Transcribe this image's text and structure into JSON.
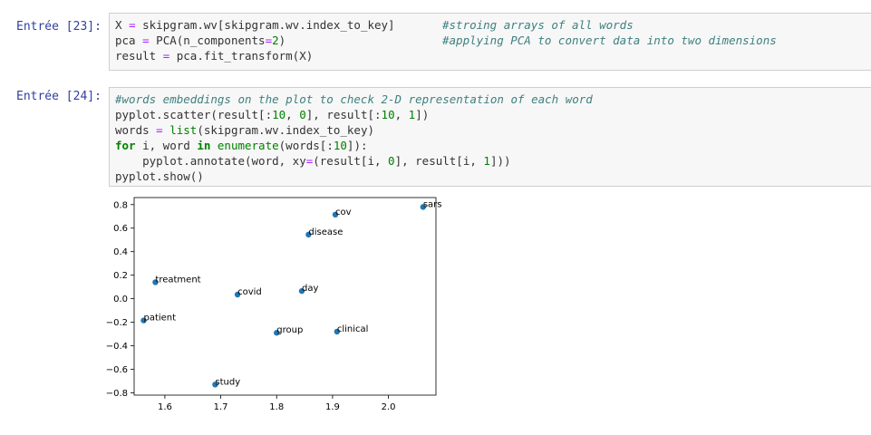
{
  "cells": [
    {
      "prompt": "Entrée [23]:",
      "lines": [
        {
          "code": "X = skipgram.wv[skipgram.wv.index_to_key]",
          "comment": "#stroing arrays of all words"
        },
        {
          "code": "pca = PCA(n_components=2)",
          "comment": "#applying PCA to convert data into two dimensions"
        },
        {
          "code": "result = pca.fit_transform(X)",
          "comment": ""
        }
      ]
    },
    {
      "prompt": "Entrée [24]:",
      "lines": [
        {
          "code": "#words embeddings on the plot to check 2-D representation of each word",
          "comment": ""
        },
        {
          "code": "pyplot.scatter(result[:10, 0], result[:10, 1])",
          "comment": ""
        },
        {
          "code": "words = list(skipgram.wv.index_to_key)",
          "comment": ""
        },
        {
          "code": "for i, word in enumerate(words[:10]):",
          "comment": ""
        },
        {
          "code": "    pyplot.annotate(word, xy=(result[i, 0], result[i, 1]))",
          "comment": ""
        },
        {
          "code": "pyplot.show()",
          "comment": ""
        }
      ]
    }
  ],
  "colors": {
    "point": "#1f77b4",
    "prompt": "#303f9f",
    "comment": "#408080",
    "keyword": "#008000"
  },
  "chart_data": {
    "type": "scatter",
    "title": "",
    "xlabel": "",
    "ylabel": "",
    "xlim": [
      1.545,
      2.085
    ],
    "ylim": [
      -0.82,
      0.86
    ],
    "xticks": [
      1.6,
      1.7,
      1.8,
      1.9,
      2.0
    ],
    "xtick_labels": [
      "1.6",
      "1.7",
      "1.8",
      "1.9",
      "2.0"
    ],
    "yticks": [
      0.8,
      0.6,
      0.4,
      0.2,
      0.0,
      -0.2,
      -0.4,
      -0.6,
      -0.8
    ],
    "ytick_labels": [
      "0.8",
      "0.6",
      "0.4",
      "0.2",
      "0.0",
      "−0.2",
      "−0.4",
      "−0.6",
      "−0.8"
    ],
    "points": [
      {
        "label": "cov",
        "x": 1.905,
        "y": 0.715
      },
      {
        "label": "sars",
        "x": 2.062,
        "y": 0.78
      },
      {
        "label": "disease",
        "x": 1.857,
        "y": 0.545
      },
      {
        "label": "treatment",
        "x": 1.583,
        "y": 0.14
      },
      {
        "label": "covid",
        "x": 1.73,
        "y": 0.035
      },
      {
        "label": "day",
        "x": 1.845,
        "y": 0.065
      },
      {
        "label": "patient",
        "x": 1.562,
        "y": -0.185
      },
      {
        "label": "group",
        "x": 1.8,
        "y": -0.29
      },
      {
        "label": "clinical",
        "x": 1.908,
        "y": -0.28
      },
      {
        "label": "study",
        "x": 1.69,
        "y": -0.73
      }
    ],
    "grid": false
  }
}
